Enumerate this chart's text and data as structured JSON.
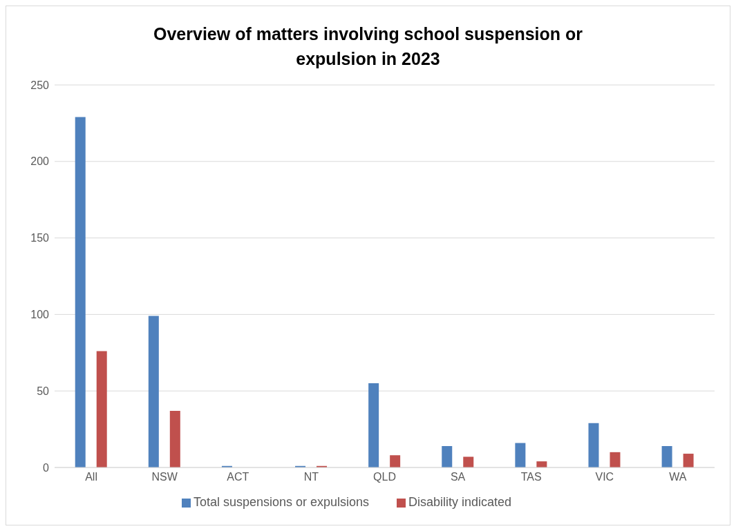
{
  "chart_data": {
    "type": "bar",
    "title": "Overview of matters involving school suspension or expulsion in 2023",
    "categories": [
      "All",
      "NSW",
      "ACT",
      "NT",
      "QLD",
      "SA",
      "TAS",
      "VIC",
      "WA"
    ],
    "series": [
      {
        "name": "Total suspensions or expulsions",
        "color": "#4f81bd",
        "values": [
          229,
          99,
          1,
          1,
          55,
          14,
          16,
          29,
          14
        ]
      },
      {
        "name": "Disability indicated",
        "color": "#c0504d",
        "values": [
          76,
          37,
          0,
          1,
          8,
          7,
          4,
          10,
          9
        ]
      }
    ],
    "ylim": [
      0,
      250
    ],
    "yticks": [
      0,
      50,
      100,
      150,
      200,
      250
    ],
    "grid": "y",
    "legend": "bottom"
  }
}
